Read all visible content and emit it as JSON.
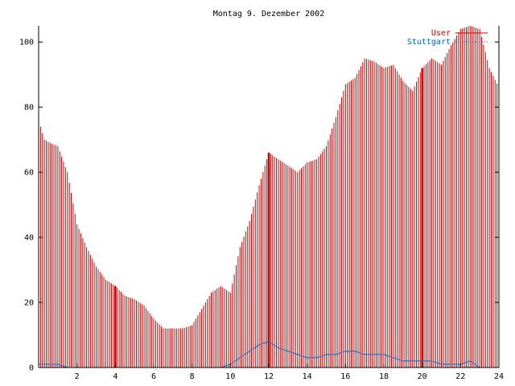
{
  "chart_data": {
    "type": "bar",
    "title": "Montag 9. Dezember 2002",
    "xlabel": "",
    "ylabel": "",
    "xlim": [
      0,
      24
    ],
    "ylim": [
      0,
      105
    ],
    "x_ticks": [
      "2",
      "4",
      "6",
      "8",
      "10",
      "12",
      "14",
      "16",
      "18",
      "20",
      "22",
      "24"
    ],
    "x_tick_values": [
      2,
      4,
      6,
      8,
      10,
      12,
      14,
      16,
      18,
      20,
      22,
      24
    ],
    "y_ticks": [
      "0",
      "20",
      "40",
      "60",
      "80",
      "100"
    ],
    "y_tick_values": [
      0,
      20,
      40,
      60,
      80,
      100
    ],
    "grid": false,
    "legend_position": "top-right",
    "colors": {
      "users": "#cc0000",
      "stuttgart": "#0066cc",
      "axis": "#000000"
    },
    "x_resolution_hours": 0.1,
    "series": [
      {
        "name": "User",
        "style": "impulses",
        "profile_hours": [
          0,
          0.3,
          0.6,
          1,
          1.5,
          2,
          2.5,
          3,
          3.5,
          4,
          4.5,
          5,
          5.5,
          6,
          6.5,
          7,
          7.5,
          8,
          8.5,
          9,
          9.5,
          10,
          10.5,
          11,
          11.5,
          12,
          12.5,
          13,
          13.5,
          14,
          14.5,
          15,
          15.5,
          16,
          16.5,
          17,
          17.5,
          18,
          18.5,
          19,
          19.5,
          20,
          20.5,
          21,
          21.5,
          22,
          22.5,
          23,
          23.5,
          24
        ],
        "profile_values": [
          76,
          70,
          69,
          68,
          60,
          44,
          37,
          31,
          27,
          25,
          22,
          21,
          19,
          15,
          12,
          12,
          12,
          13,
          18,
          23,
          25,
          23,
          37,
          45,
          56,
          66,
          64,
          62,
          60,
          63,
          64,
          68,
          77,
          87,
          89,
          95,
          94,
          92,
          93,
          88,
          85,
          92,
          95,
          93,
          99,
          104,
          105,
          104,
          92,
          86
        ]
      },
      {
        "name": "Stuttgart",
        "style": "dots",
        "profile_hours": [
          0,
          0.3,
          0.6,
          1,
          1.5,
          2,
          2.5,
          3,
          3.5,
          4,
          4.5,
          5,
          5.5,
          6,
          6.5,
          7,
          7.5,
          8,
          8.5,
          9,
          9.5,
          10,
          10.5,
          11,
          11.5,
          12,
          12.5,
          13,
          13.5,
          14,
          14.5,
          15,
          15.5,
          16,
          16.5,
          17,
          17.5,
          18,
          18.5,
          19,
          19.5,
          20,
          20.5,
          21,
          21.5,
          22,
          22.5,
          23,
          23.5,
          24
        ],
        "profile_values": [
          1,
          1,
          1,
          1,
          0,
          0,
          0,
          0,
          0,
          0,
          0,
          0,
          0,
          0,
          0,
          0,
          0,
          0,
          0,
          0,
          0,
          1,
          3,
          5,
          7,
          8,
          6,
          5,
          4,
          3,
          3,
          4,
          4,
          5,
          5,
          4,
          4,
          4,
          3,
          2,
          2,
          2,
          2,
          1,
          1,
          1,
          2,
          0,
          0,
          0
        ]
      }
    ],
    "highlight_markers_hours": [
      4,
      12,
      20
    ]
  }
}
